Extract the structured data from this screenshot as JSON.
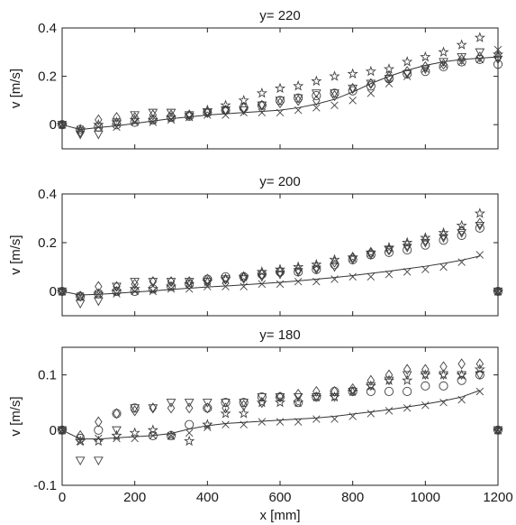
{
  "chart_data": [
    {
      "type": "scatter",
      "title": "y= 220",
      "ylabel": "v [m/s]",
      "xlabel": "",
      "xlim": [
        0,
        1200
      ],
      "ylim": [
        -0.1,
        0.4
      ],
      "xticks": [
        0,
        200,
        400,
        600,
        800,
        1000,
        1200
      ],
      "yticks": [
        0,
        0.2,
        0.4
      ],
      "ytick_labels": [
        "0",
        "0.2",
        "0.4"
      ],
      "show_xtick_labels": false,
      "x": [
        50,
        100,
        150,
        200,
        250,
        300,
        350,
        400,
        450,
        500,
        550,
        600,
        650,
        700,
        750,
        800,
        850,
        900,
        950,
        1000,
        1050,
        1100,
        1150
      ],
      "line": {
        "x": [
          0,
          50,
          100,
          150,
          200,
          250,
          300,
          350,
          400,
          450,
          500,
          550,
          600,
          650,
          700,
          750,
          800,
          850,
          900,
          950,
          1000,
          1050,
          1100,
          1150,
          1200
        ],
        "y": [
          0,
          -0.02,
          -0.012,
          -0.005,
          0.005,
          0.015,
          0.025,
          0.032,
          0.04,
          0.045,
          0.05,
          0.055,
          0.06,
          0.07,
          0.085,
          0.105,
          0.135,
          0.17,
          0.2,
          0.225,
          0.245,
          0.26,
          0.27,
          0.275,
          0.28
        ]
      },
      "series": [
        {
          "marker": "circle",
          "values": [
            -0.02,
            -0.01,
            0.0,
            0.01,
            0.02,
            0.03,
            0.035,
            0.05,
            0.06,
            0.07,
            0.08,
            0.1,
            0.11,
            0.12,
            0.13,
            0.14,
            0.16,
            0.19,
            0.21,
            0.22,
            0.24,
            0.26,
            0.27
          ]
        },
        {
          "marker": "triangle-down",
          "values": [
            -0.04,
            -0.04,
            0.01,
            0.04,
            0.05,
            0.05,
            0.04,
            0.05,
            0.06,
            0.06,
            0.08,
            0.1,
            0.11,
            0.13,
            0.13,
            0.15,
            0.17,
            0.19,
            0.21,
            0.23,
            0.26,
            0.28,
            0.3
          ]
        },
        {
          "marker": "diamond",
          "values": [
            -0.03,
            0.02,
            0.03,
            0.03,
            0.04,
            0.04,
            0.04,
            0.05,
            0.06,
            0.07,
            0.08,
            0.09,
            0.1,
            0.1,
            0.12,
            0.15,
            0.17,
            0.2,
            0.22,
            0.24,
            0.25,
            0.27,
            0.28
          ]
        },
        {
          "marker": "star",
          "values": [
            -0.02,
            0.0,
            0.01,
            0.02,
            0.02,
            0.03,
            0.04,
            0.06,
            0.08,
            0.1,
            0.13,
            0.15,
            0.16,
            0.18,
            0.2,
            0.21,
            0.22,
            0.23,
            0.26,
            0.28,
            0.3,
            0.33,
            0.36
          ]
        },
        {
          "marker": "x",
          "values": [
            -0.02,
            -0.01,
            -0.01,
            0.01,
            0.01,
            0.02,
            0.03,
            0.04,
            0.04,
            0.05,
            0.05,
            0.05,
            0.06,
            0.07,
            0.08,
            0.1,
            0.13,
            0.17,
            0.2,
            0.23,
            0.25,
            0.26,
            0.27
          ]
        }
      ]
    },
    {
      "type": "scatter",
      "title": "y= 200",
      "ylabel": "v [m/s]",
      "xlabel": "",
      "xlim": [
        0,
        1200
      ],
      "ylim": [
        -0.1,
        0.4
      ],
      "xticks": [
        0,
        200,
        400,
        600,
        800,
        1000,
        1200
      ],
      "yticks": [
        0,
        0.2,
        0.4
      ],
      "ytick_labels": [
        "0",
        "0.2",
        "0.4"
      ],
      "show_xtick_labels": false,
      "x": [
        50,
        100,
        150,
        200,
        250,
        300,
        350,
        400,
        450,
        500,
        550,
        600,
        650,
        700,
        750,
        800,
        850,
        900,
        950,
        1000,
        1050,
        1100,
        1150
      ],
      "line": {
        "x": [
          0,
          50,
          100,
          150,
          200,
          250,
          300,
          350,
          400,
          450,
          500,
          550,
          600,
          650,
          700,
          750,
          800,
          850,
          900,
          950,
          1000,
          1050,
          1100,
          1150
        ],
        "y": [
          0,
          -0.015,
          -0.012,
          -0.008,
          -0.003,
          0.002,
          0.008,
          0.013,
          0.018,
          0.022,
          0.027,
          0.032,
          0.037,
          0.043,
          0.05,
          0.057,
          0.065,
          0.074,
          0.083,
          0.093,
          0.103,
          0.115,
          0.128,
          0.145
        ]
      },
      "series": [
        {
          "marker": "circle",
          "values": [
            -0.02,
            -0.01,
            0.0,
            0.0,
            0.01,
            0.02,
            0.03,
            0.05,
            0.06,
            0.06,
            0.07,
            0.08,
            0.08,
            0.09,
            0.11,
            0.13,
            0.15,
            0.16,
            0.17,
            0.19,
            0.21,
            0.23,
            0.26
          ]
        },
        {
          "marker": "triangle-down",
          "values": [
            -0.05,
            -0.04,
            0.02,
            0.04,
            0.04,
            0.04,
            0.04,
            0.04,
            0.05,
            0.05,
            0.06,
            0.07,
            0.08,
            0.09,
            0.1,
            0.13,
            0.15,
            0.17,
            0.18,
            0.2,
            0.22,
            0.24,
            0.27
          ]
        },
        {
          "marker": "diamond",
          "values": [
            -0.02,
            0.02,
            0.02,
            0.03,
            0.04,
            0.04,
            0.04,
            0.05,
            0.05,
            0.06,
            0.07,
            0.08,
            0.09,
            0.1,
            0.12,
            0.14,
            0.16,
            0.17,
            0.19,
            0.21,
            0.23,
            0.25,
            0.28
          ]
        },
        {
          "marker": "star",
          "values": [
            -0.02,
            -0.01,
            0.0,
            0.01,
            0.01,
            0.02,
            0.03,
            0.04,
            0.05,
            0.06,
            0.08,
            0.09,
            0.1,
            0.11,
            0.13,
            0.14,
            0.16,
            0.18,
            0.2,
            0.22,
            0.24,
            0.27,
            0.32
          ]
        },
        {
          "marker": "x",
          "values": [
            -0.02,
            -0.01,
            -0.01,
            0.0,
            0.0,
            0.01,
            0.01,
            0.02,
            0.02,
            0.02,
            0.03,
            0.03,
            0.04,
            0.04,
            0.05,
            0.06,
            0.06,
            0.07,
            0.08,
            0.09,
            0.1,
            0.12,
            0.15
          ]
        }
      ]
    },
    {
      "type": "scatter",
      "title": "y= 180",
      "ylabel": "v [m/s]",
      "xlabel": "x [mm]",
      "xlim": [
        0,
        1200
      ],
      "ylim": [
        -0.1,
        0.15
      ],
      "xticks": [
        0,
        200,
        400,
        600,
        800,
        1000,
        1200
      ],
      "xtick_labels": [
        "0",
        "200",
        "400",
        "600",
        "800",
        "1000",
        "1200"
      ],
      "yticks": [
        -0.1,
        0,
        0.1
      ],
      "ytick_labels": [
        "-0.1",
        "0",
        "0.1"
      ],
      "show_xtick_labels": true,
      "x": [
        50,
        100,
        150,
        200,
        250,
        300,
        350,
        400,
        450,
        500,
        550,
        600,
        650,
        700,
        750,
        800,
        850,
        900,
        950,
        1000,
        1050,
        1100,
        1150
      ],
      "line": {
        "x": [
          0,
          50,
          100,
          150,
          200,
          250,
          300,
          350,
          400,
          450,
          500,
          550,
          600,
          650,
          700,
          750,
          800,
          850,
          900,
          950,
          1000,
          1050,
          1100,
          1150
        ],
        "y": [
          0,
          -0.016,
          -0.016,
          -0.014,
          -0.012,
          -0.01,
          -0.006,
          0.002,
          0.008,
          0.012,
          0.014,
          0.016,
          0.018,
          0.02,
          0.022,
          0.025,
          0.029,
          0.033,
          0.037,
          0.042,
          0.047,
          0.053,
          0.06,
          0.072
        ]
      },
      "series": [
        {
          "marker": "circle",
          "values": [
            -0.015,
            0.0,
            0.03,
            0.04,
            -0.01,
            -0.01,
            0.01,
            0.04,
            0.05,
            0.05,
            0.06,
            0.06,
            0.05,
            0.06,
            0.07,
            0.07,
            0.07,
            0.07,
            0.07,
            0.08,
            0.08,
            0.09,
            0.1
          ]
        },
        {
          "marker": "triangle-down",
          "values": [
            -0.055,
            -0.055,
            0.0,
            0.04,
            0.04,
            0.05,
            0.05,
            0.05,
            0.05,
            0.05,
            0.06,
            0.06,
            0.06,
            0.06,
            0.06,
            0.07,
            0.08,
            0.09,
            0.1,
            0.1,
            0.1,
            0.1,
            0.1
          ]
        },
        {
          "marker": "diamond",
          "values": [
            -0.01,
            0.015,
            0.03,
            0.035,
            0.04,
            0.04,
            0.04,
            0.04,
            0.04,
            0.045,
            0.05,
            0.06,
            0.065,
            0.07,
            0.07,
            0.075,
            0.09,
            0.1,
            0.11,
            0.11,
            0.115,
            0.12,
            0.12
          ]
        },
        {
          "marker": "star",
          "values": [
            -0.02,
            -0.02,
            -0.01,
            -0.005,
            0.0,
            -0.01,
            -0.02,
            0.01,
            0.03,
            0.03,
            0.05,
            0.05,
            0.05,
            0.06,
            0.06,
            0.07,
            0.08,
            0.09,
            0.09,
            0.1,
            0.1,
            0.1,
            0.11
          ]
        },
        {
          "marker": "x",
          "values": [
            -0.02,
            -0.015,
            -0.015,
            -0.015,
            -0.01,
            -0.01,
            -0.005,
            0.005,
            0.01,
            0.01,
            0.015,
            0.015,
            0.015,
            0.02,
            0.02,
            0.025,
            0.03,
            0.035,
            0.04,
            0.045,
            0.05,
            0.055,
            0.07
          ]
        }
      ]
    }
  ]
}
